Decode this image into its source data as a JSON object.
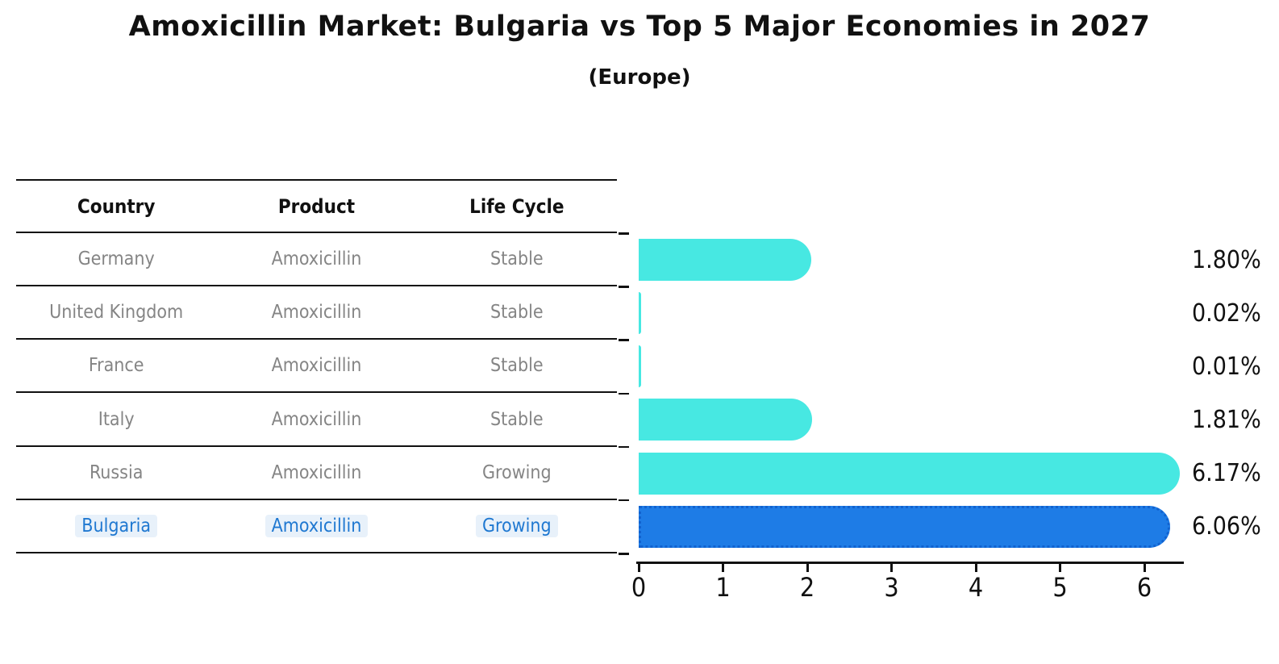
{
  "title": "Amoxicillin Market: Bulgaria vs Top 5 Major Economies in 2027",
  "subtitle": "(Europe)",
  "table": {
    "headers": [
      "Country",
      "Product",
      "Life Cycle"
    ]
  },
  "chart_data": {
    "type": "bar",
    "orientation": "horizontal",
    "title": "Amoxicillin Market: Bulgaria vs Top 5 Major Economies in 2027",
    "subtitle": "(Europe)",
    "categories": [
      "Germany",
      "United Kingdom",
      "France",
      "Italy",
      "Russia",
      "Bulgaria"
    ],
    "values": [
      1.8,
      0.02,
      0.01,
      1.81,
      6.17,
      6.06
    ],
    "bar_labels": [
      "1.80%",
      "0.02%",
      "0.01%",
      "1.81%",
      "6.17%",
      "6.06%"
    ],
    "x_ticks": [
      0,
      1,
      2,
      3,
      4,
      5,
      6
    ],
    "xlim": [
      0,
      6.47
    ],
    "grid": false,
    "legend": false,
    "rows": [
      {
        "country": "Germany",
        "product": "Amoxicillin",
        "life_cycle": "Stable",
        "value": 1.8,
        "label": "1.80%",
        "highlight": false
      },
      {
        "country": "United Kingdom",
        "product": "Amoxicillin",
        "life_cycle": "Stable",
        "value": 0.02,
        "label": "0.02%",
        "highlight": false
      },
      {
        "country": "France",
        "product": "Amoxicillin",
        "life_cycle": "Stable",
        "value": 0.01,
        "label": "0.01%",
        "highlight": false
      },
      {
        "country": "Italy",
        "product": "Amoxicillin",
        "life_cycle": "Stable",
        "value": 1.81,
        "label": "1.81%",
        "highlight": false
      },
      {
        "country": "Russia",
        "product": "Amoxicillin",
        "life_cycle": "Growing",
        "value": 6.17,
        "label": "6.17%",
        "highlight": false
      },
      {
        "country": "Bulgaria",
        "product": "Amoxicillin",
        "life_cycle": "Growing",
        "value": 6.06,
        "label": "6.06%",
        "highlight": true
      }
    ],
    "colors": {
      "bar": "#47E8E2",
      "highlight_bar": "#1E7CE6",
      "highlight_bar_border": "#1162CF",
      "highlight_text": "#1F78D1",
      "row_text_gray": "#858585",
      "axis_ink": "#111111"
    }
  }
}
